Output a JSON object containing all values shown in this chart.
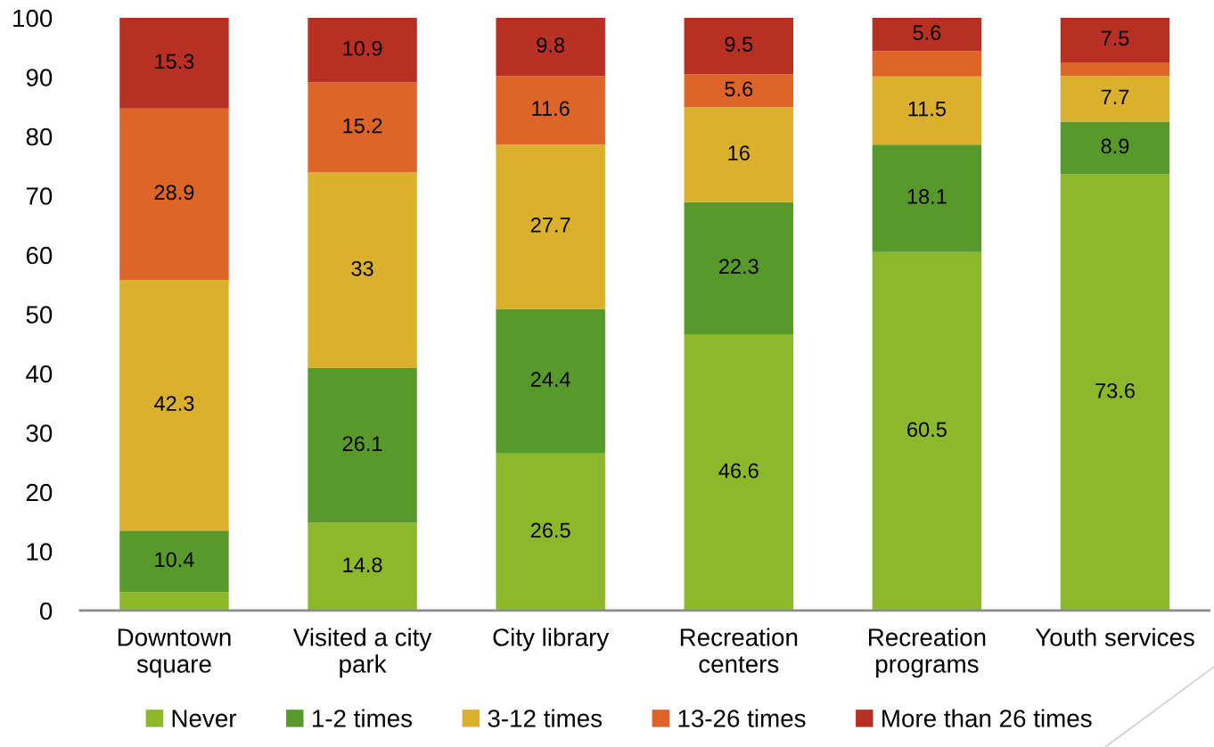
{
  "chart_data": {
    "type": "bar",
    "stacked": true,
    "categories": [
      "Downtown square",
      "Visited a city park",
      "City library",
      "Recreation centers",
      "Recreation programs",
      "Youth services"
    ],
    "series": [
      {
        "name": "Never",
        "color": "#8cb82c",
        "values": [
          3.1,
          14.8,
          26.5,
          46.6,
          60.5,
          73.6
        ],
        "value_labels": [
          null,
          "14.8",
          "26.5",
          "46.6",
          "60.5",
          "73.6"
        ]
      },
      {
        "name": "1-2 times",
        "color": "#57992a",
        "values": [
          10.4,
          26.1,
          24.4,
          22.3,
          18.1,
          8.9
        ],
        "value_labels": [
          "10.4",
          "26.1",
          "24.4",
          "22.3",
          "18.1",
          "8.9"
        ]
      },
      {
        "name": "3-12 times",
        "color": "#dbb02c",
        "values": [
          42.3,
          33,
          27.7,
          16,
          11.5,
          7.7
        ],
        "value_labels": [
          "42.3",
          "33",
          "27.7",
          "16",
          "11.5",
          "7.7"
        ]
      },
      {
        "name": "13-26 times",
        "color": "#de6528",
        "values": [
          28.9,
          15.2,
          11.6,
          5.6,
          4.3,
          2.3
        ],
        "value_labels": [
          "28.9",
          "15.2",
          "11.6",
          "5.6",
          null,
          null
        ]
      },
      {
        "name": "More than 26 times",
        "color": "#b83023",
        "values": [
          15.3,
          10.9,
          9.8,
          9.5,
          5.6,
          7.5
        ],
        "value_labels": [
          "15.3",
          "10.9",
          "9.8",
          "9.5",
          "5.6",
          "7.5"
        ]
      }
    ],
    "ylim": [
      0,
      100
    ],
    "yticks": [
      0,
      10,
      20,
      30,
      40,
      50,
      60,
      70,
      80,
      90,
      100
    ],
    "grid": false,
    "legend": "bottom"
  }
}
